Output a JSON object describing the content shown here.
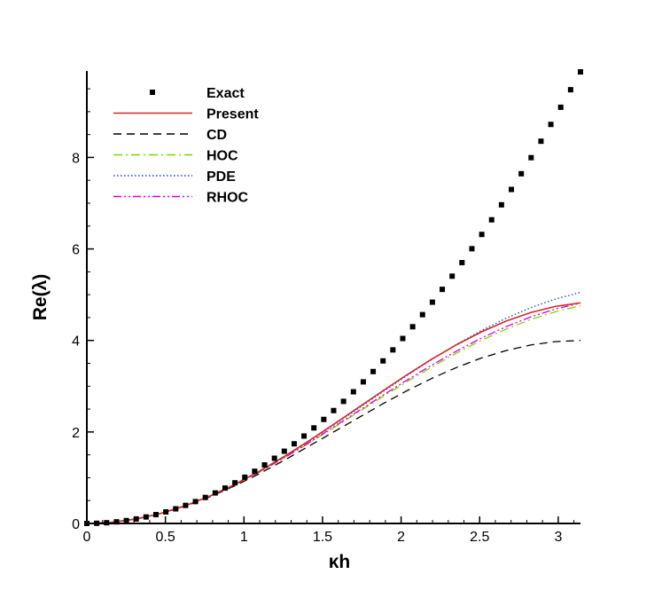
{
  "chart_data": {
    "type": "line",
    "title": "",
    "xlabel": "κh",
    "ylabel": "Re(λ)",
    "xlim": [
      0,
      3.14159
    ],
    "ylim": [
      0,
      9.87
    ],
    "xticks": [
      0,
      0.5,
      1,
      1.5,
      2,
      2.5,
      3
    ],
    "xtick_labels": [
      "0",
      "0.5",
      "1",
      "1.5",
      "2",
      "2.5",
      "3"
    ],
    "yticks": [
      0,
      2,
      4,
      6,
      8
    ],
    "ytick_labels": [
      "0",
      "2",
      "4",
      "6",
      "8"
    ],
    "grid": false,
    "legend_position": "top-left",
    "series": [
      {
        "name": "Exact",
        "style": "markers",
        "marker": "square",
        "color": "#000000",
        "x": [
          0,
          0.0628,
          0.1257,
          0.1885,
          0.2513,
          0.3142,
          0.377,
          0.4398,
          0.5027,
          0.5655,
          0.6283,
          0.6912,
          0.754,
          0.8168,
          0.8796,
          0.9425,
          1.0053,
          1.0681,
          1.131,
          1.1938,
          1.2566,
          1.3195,
          1.3823,
          1.4451,
          1.508,
          1.5708,
          1.6336,
          1.6965,
          1.7593,
          1.8221,
          1.885,
          1.9478,
          2.0106,
          2.0735,
          2.1363,
          2.1991,
          2.2619,
          2.3248,
          2.3876,
          2.4504,
          2.5133,
          2.5761,
          2.6389,
          2.7018,
          2.7646,
          2.8274,
          2.8903,
          2.9531,
          3.0159,
          3.0788,
          3.1416
        ],
        "y": [
          0,
          0.0039,
          0.0158,
          0.0355,
          0.0632,
          0.0987,
          0.1421,
          0.1934,
          0.2527,
          0.3198,
          0.3948,
          0.4777,
          0.5685,
          0.6672,
          0.7738,
          0.8883,
          1.0106,
          1.1409,
          1.2791,
          1.4251,
          1.5791,
          1.741,
          1.9107,
          2.0884,
          2.2739,
          2.4674,
          2.6687,
          2.8779,
          3.0951,
          3.3201,
          3.5531,
          3.7939,
          4.0426,
          4.2993,
          4.5638,
          4.8362,
          5.1165,
          5.4047,
          5.7009,
          6.0049,
          6.3168,
          6.6366,
          6.9643,
          7.2999,
          7.6434,
          7.9948,
          8.3542,
          8.7214,
          9.0965,
          9.4795,
          9.8696
        ]
      },
      {
        "name": "Present",
        "style": "solid",
        "color": "#d62728",
        "x": [
          0,
          0.1571,
          0.3142,
          0.4712,
          0.6283,
          0.7854,
          0.9425,
          1.0996,
          1.2566,
          1.4137,
          1.5708,
          1.7279,
          1.885,
          2.042,
          2.1991,
          2.3562,
          2.5133,
          2.6704,
          2.8274,
          2.9845,
          3.1416
        ],
        "y": [
          0,
          0.0247,
          0.0986,
          0.2209,
          0.3897,
          0.6025,
          0.8557,
          1.1447,
          1.464,
          1.8072,
          2.1667,
          2.5345,
          2.9018,
          3.2598,
          3.5997,
          3.9125,
          4.1902,
          4.4255,
          4.6123,
          4.7456,
          4.8211
        ]
      },
      {
        "name": "CD",
        "style": "dashed",
        "color": "#000000",
        "x": [
          0,
          0.1571,
          0.3142,
          0.4712,
          0.6283,
          0.7854,
          0.9425,
          1.0996,
          1.2566,
          1.4137,
          1.5708,
          1.7279,
          1.885,
          2.042,
          2.1991,
          2.3562,
          2.5133,
          2.6704,
          2.8274,
          2.9845,
          3.1416
        ],
        "y": [
          0,
          0.0246,
          0.0979,
          0.2183,
          0.382,
          0.5858,
          0.824,
          1.091,
          1.382,
          1.691,
          2,
          2.309,
          2.618,
          2.909,
          3.176,
          3.4142,
          3.618,
          3.7817,
          3.9021,
          3.9754,
          4
        ]
      },
      {
        "name": "HOC",
        "style": "dash-dot",
        "color": "#7fd600",
        "x": [
          0,
          0.1571,
          0.3142,
          0.4712,
          0.6283,
          0.7854,
          0.9425,
          1.0996,
          1.2566,
          1.4137,
          1.5708,
          1.7279,
          1.885,
          2.042,
          2.1991,
          2.3562,
          2.5133,
          2.6704,
          2.8274,
          2.9845,
          3.1416
        ],
        "y": [
          0,
          0.0247,
          0.0986,
          0.2206,
          0.3884,
          0.5985,
          0.8461,
          1.1255,
          1.4305,
          1.7545,
          2.0909,
          2.4329,
          2.7741,
          3.1079,
          3.4282,
          3.7289,
          4.0051,
          4.2506,
          4.4607,
          4.6303,
          4.7567
        ]
      },
      {
        "name": "PDE",
        "style": "dotted",
        "color": "#1f3fd6",
        "x": [
          0,
          0.1571,
          0.3142,
          0.4712,
          0.6283,
          0.7854,
          0.9425,
          1.0996,
          1.2566,
          1.4137,
          1.5708,
          1.7279,
          1.885,
          2.042,
          2.1991,
          2.3562,
          2.5133,
          2.6704,
          2.8274,
          2.9845,
          3.1416
        ],
        "y": [
          0,
          0.0247,
          0.0986,
          0.2208,
          0.3893,
          0.6012,
          0.8527,
          1.1389,
          1.4546,
          1.7937,
          2.1494,
          2.5146,
          2.8818,
          3.2434,
          3.5917,
          3.9196,
          4.2206,
          4.4887,
          4.719,
          4.9074,
          5.051
        ]
      },
      {
        "name": "RHOC",
        "style": "dash-dot-dot",
        "color": "#d600d6",
        "x": [
          0,
          0.1571,
          0.3142,
          0.4712,
          0.6283,
          0.7854,
          0.9425,
          1.0996,
          1.2566,
          1.4137,
          1.5708,
          1.7279,
          1.885,
          2.042,
          2.1991,
          2.3562,
          2.5133,
          2.6704,
          2.8274,
          2.9845,
          3.1416
        ],
        "y": [
          0,
          0.0247,
          0.0985,
          0.2206,
          0.3886,
          0.5992,
          0.8479,
          1.1295,
          1.4378,
          1.7664,
          2.1082,
          2.4563,
          2.8036,
          3.1433,
          3.4688,
          3.7743,
          4.0544,
          4.3037,
          4.5171,
          4.6893,
          4.8163
        ]
      }
    ]
  }
}
